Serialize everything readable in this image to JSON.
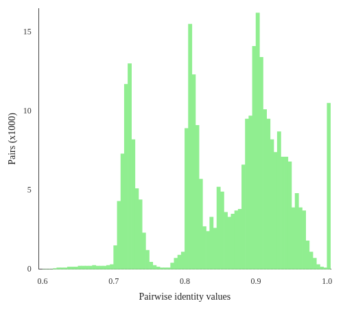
{
  "chart_data": {
    "type": "histogram",
    "xlabel": "Pairwise identity values",
    "ylabel": "Pairs (x1000)",
    "color": "#90EE90",
    "bins": [
      0.6,
      0.605,
      0.61,
      0.615,
      0.62,
      0.625,
      0.63,
      0.635,
      0.64,
      0.645,
      0.65,
      0.655,
      0.66,
      0.665,
      0.67,
      0.675,
      0.68,
      0.685,
      0.69,
      0.695,
      0.7,
      0.705,
      0.71,
      0.715,
      0.72,
      0.725,
      0.73,
      0.735,
      0.74,
      0.745,
      0.75,
      0.755,
      0.76,
      0.765,
      0.77,
      0.775,
      0.78,
      0.785,
      0.79,
      0.795,
      0.8,
      0.805,
      0.81,
      0.815,
      0.82,
      0.825,
      0.83,
      0.835,
      0.84,
      0.845,
      0.85,
      0.855,
      0.86,
      0.865,
      0.87,
      0.875,
      0.88,
      0.885,
      0.89,
      0.895,
      0.9,
      0.905,
      0.91,
      0.915,
      0.92,
      0.925,
      0.93,
      0.935,
      0.94,
      0.945,
      0.95,
      0.955,
      0.96,
      0.965,
      0.97,
      0.975,
      0.98,
      0.985,
      0.99,
      0.995,
      1.0,
      1.005
    ],
    "values": [
      0.0,
      0.0,
      0.0,
      0.05,
      0.1,
      0.1,
      0.1,
      0.15,
      0.15,
      0.15,
      0.2,
      0.2,
      0.2,
      0.2,
      0.25,
      0.2,
      0.2,
      0.2,
      0.25,
      0.3,
      1.5,
      4.3,
      7.3,
      11.7,
      13.0,
      8.2,
      5.1,
      4.4,
      2.3,
      1.2,
      0.45,
      0.25,
      0.15,
      0.1,
      0.1,
      0.1,
      0.4,
      0.7,
      0.9,
      1.1,
      8.9,
      15.5,
      12.3,
      9.1,
      5.7,
      2.7,
      2.4,
      3.3,
      2.6,
      5.2,
      4.9,
      3.6,
      3.3,
      3.5,
      3.7,
      3.8,
      6.6,
      9.5,
      9.7,
      14.1,
      16.2,
      13.4,
      10.1,
      9.5,
      8.2,
      7.4,
      8.7,
      7.1,
      7.1,
      6.8,
      3.9,
      4.8,
      3.9,
      3.7,
      1.8,
      1.1,
      0.7,
      0.3,
      0.15,
      0.1,
      10.5
    ],
    "xlim": [
      0.595,
      1.005
    ],
    "xticks": [
      0.6,
      0.7,
      0.8,
      0.9,
      {
        "value": 1.0,
        "label": "1.0"
      }
    ],
    "ylim": [
      0,
      16.5
    ],
    "yticks": [
      0,
      5,
      10,
      15
    ],
    "grid": false
  }
}
